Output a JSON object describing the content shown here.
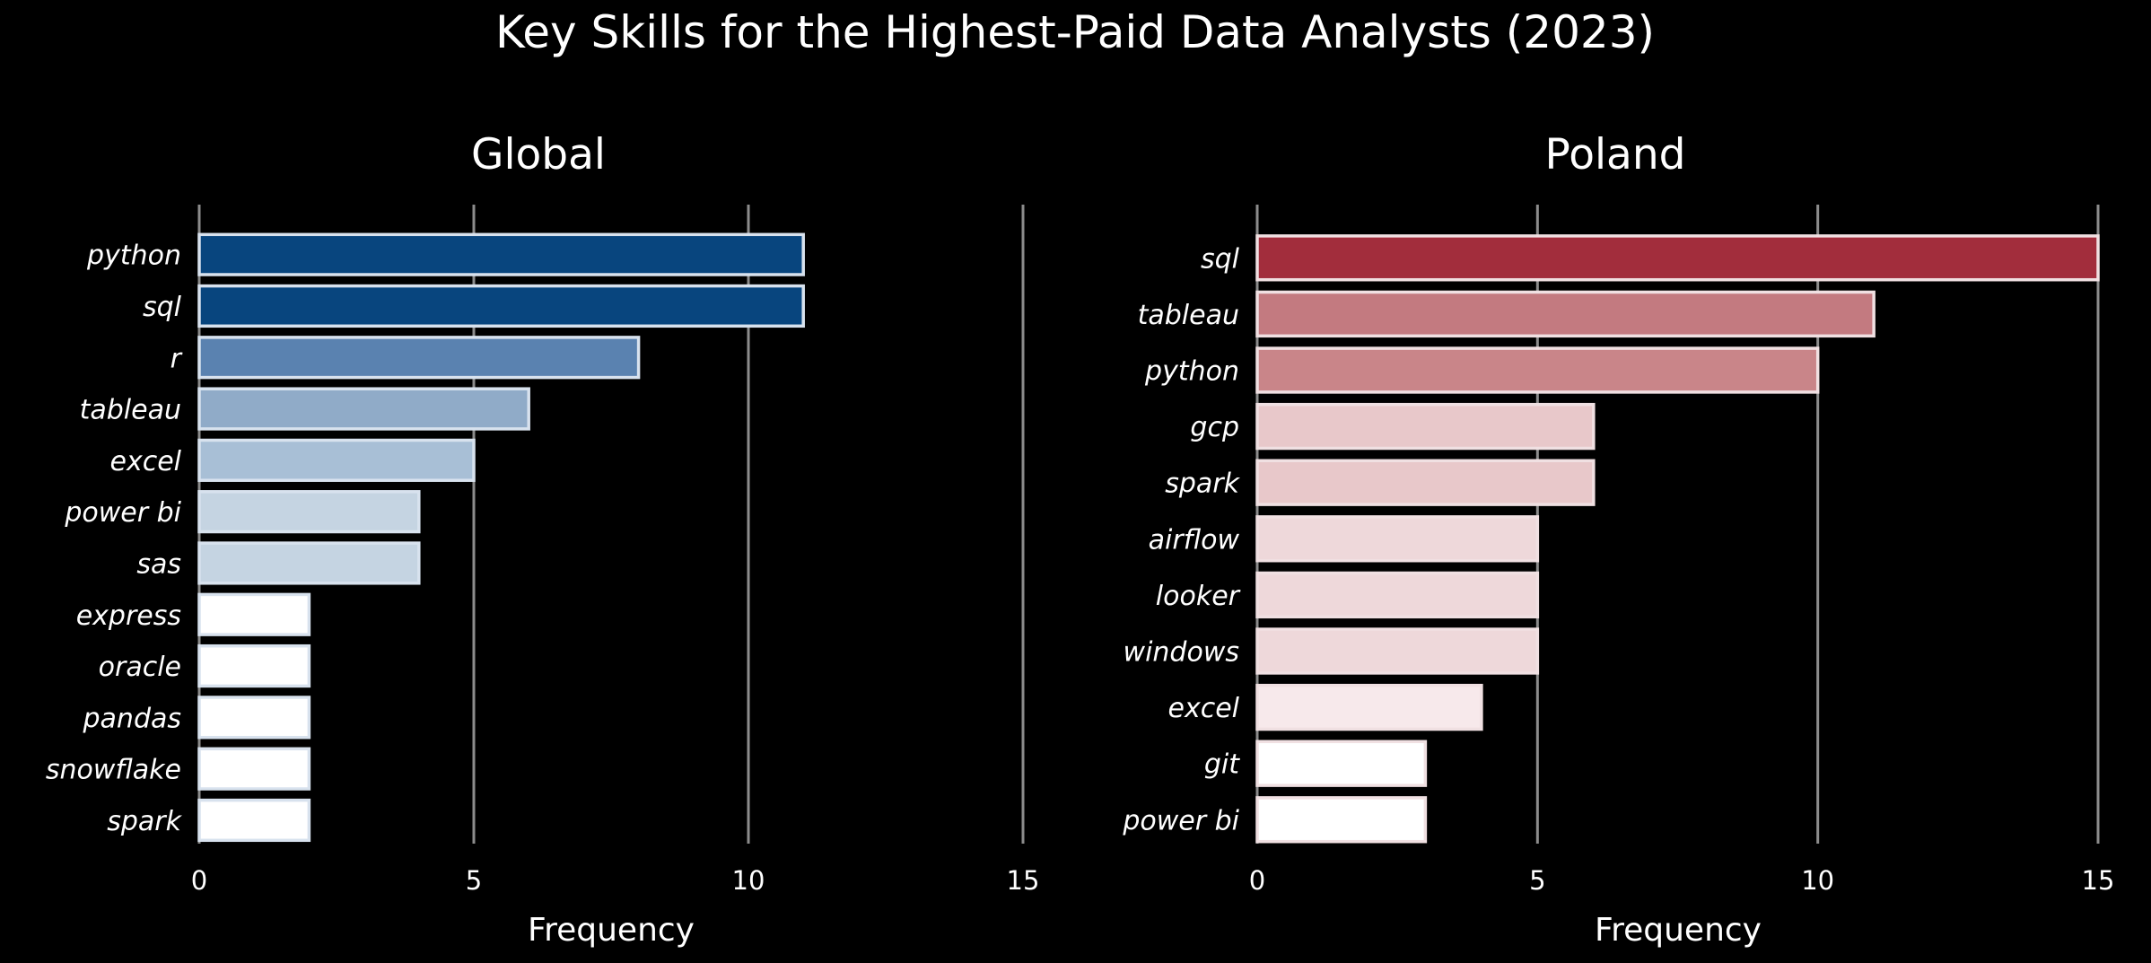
{
  "title": "Key Skills for the Highest-Paid Data Analysts (2023)",
  "chart_data": [
    {
      "type": "bar",
      "orientation": "horizontal",
      "title": "Global",
      "xlabel": "Frequency",
      "ylabel": "",
      "xlim": [
        0,
        15
      ],
      "xticks": [
        0,
        5,
        10,
        15
      ],
      "grid": "vertical",
      "categories": [
        "python",
        "sql",
        "r",
        "tableau",
        "excel",
        "power bi",
        "sas",
        "express",
        "oracle",
        "pandas",
        "snowflake",
        "spark"
      ],
      "values": [
        11,
        11,
        8,
        6,
        5,
        4,
        4,
        2,
        2,
        2,
        2,
        2
      ],
      "colors": [
        "#08457e",
        "#08457e",
        "#5a82b0",
        "#90abc8",
        "#a8bfd6",
        "#c5d4e2",
        "#c5d4e2",
        "#ffffff",
        "#ffffff",
        "#ffffff",
        "#ffffff",
        "#ffffff"
      ],
      "edge_color": "#d8e2ee"
    },
    {
      "type": "bar",
      "orientation": "horizontal",
      "title": "Poland",
      "xlabel": "Frequency",
      "ylabel": "",
      "xlim": [
        0,
        15
      ],
      "xticks": [
        0,
        5,
        10,
        15
      ],
      "grid": "vertical",
      "categories": [
        "sql",
        "tableau",
        "python",
        "gcp",
        "spark",
        "airflow",
        "looker",
        "windows",
        "excel",
        "git",
        "power bi"
      ],
      "values": [
        15,
        11,
        10,
        6,
        6,
        5,
        5,
        5,
        4,
        3,
        3
      ],
      "colors": [
        "#a22d3c",
        "#c37a80",
        "#c98589",
        "#e8c8ca",
        "#e8c8ca",
        "#eed8da",
        "#eed8da",
        "#eed8da",
        "#f7e9eb",
        "#ffffff",
        "#ffffff"
      ],
      "edge_color": "#f0e0e2"
    }
  ]
}
